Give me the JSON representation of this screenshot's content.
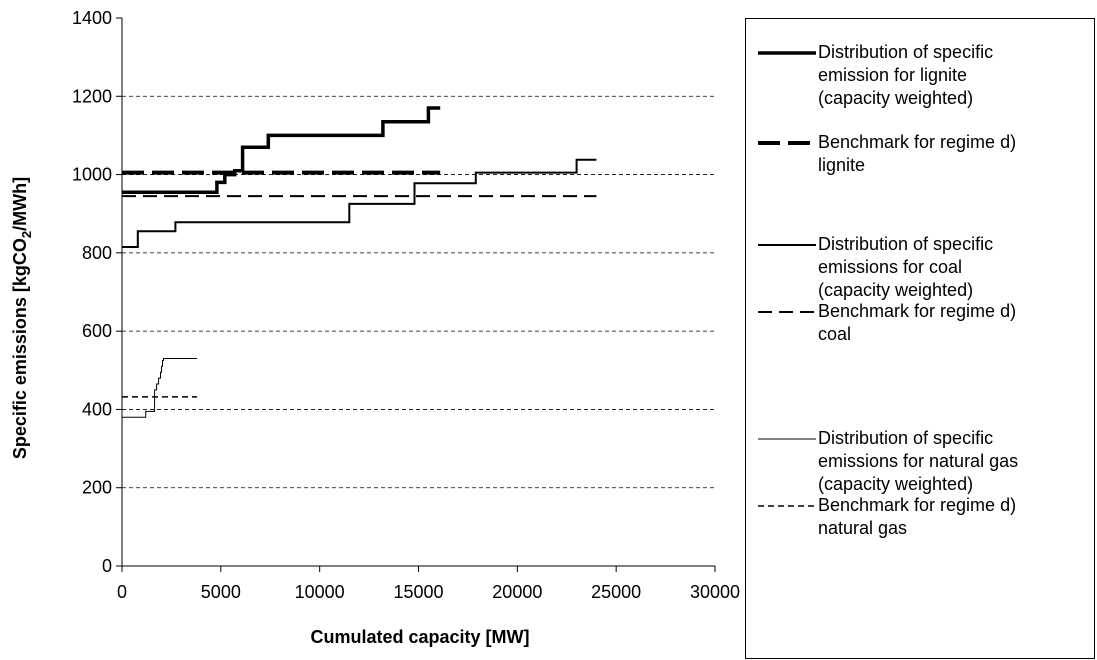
{
  "chart_data": {
    "type": "line",
    "xlabel": "Cumulated capacity [MW]",
    "ylabel_prefix": "Specific emissions [kgCO",
    "ylabel_sub": "2",
    "ylabel_suffix": "/MWh]",
    "xlim": [
      0,
      30000
    ],
    "ylim": [
      0,
      1400
    ],
    "xticks": [
      "0",
      "5000",
      "10000",
      "15000",
      "20000",
      "25000",
      "30000"
    ],
    "yticks": [
      "0",
      "200",
      "400",
      "600",
      "800",
      "1000",
      "1200",
      "1400"
    ],
    "grid": "horizontal dashed",
    "legend_position": "right",
    "series": [
      {
        "name": "Distribution of specific emission for lignite (capacity weighted)",
        "style": "step-thick-solid",
        "x": [
          0,
          4800,
          4800,
          5200,
          5200,
          5700,
          5700,
          6100,
          6100,
          7400,
          7400,
          13200,
          13200,
          15500,
          15500,
          16100
        ],
        "y": [
          955,
          955,
          980,
          980,
          1000,
          1000,
          1010,
          1010,
          1070,
          1070,
          1100,
          1100,
          1135,
          1135,
          1170,
          1170
        ]
      },
      {
        "name": "Benchmark for regime d) lignite",
        "style": "thick-dash",
        "x": [
          0,
          16100
        ],
        "y": [
          1005,
          1005
        ]
      },
      {
        "name": "Distribution of specific emissions for coal (capacity weighted)",
        "style": "step-medium-solid",
        "x": [
          0,
          800,
          800,
          2700,
          2700,
          11500,
          11500,
          14800,
          14800,
          17900,
          17900,
          23000,
          23000,
          24000
        ],
        "y": [
          815,
          815,
          855,
          855,
          878,
          878,
          925,
          925,
          978,
          978,
          1005,
          1005,
          1038,
          1038
        ]
      },
      {
        "name": "Benchmark for regime d) coal",
        "style": "medium-dash",
        "x": [
          0,
          24000
        ],
        "y": [
          945,
          945
        ]
      },
      {
        "name": "Distribution of specific emissions for natural gas (capacity weighted)",
        "style": "step-thin-solid",
        "x": [
          0,
          1200,
          1200,
          1650,
          1650,
          1750,
          1750,
          1850,
          1850,
          1950,
          1950,
          2000,
          2000,
          2050,
          2050,
          2100,
          2100,
          3800
        ],
        "y": [
          380,
          380,
          395,
          395,
          450,
          450,
          465,
          465,
          480,
          480,
          495,
          495,
          510,
          510,
          525,
          525,
          530,
          530
        ]
      },
      {
        "name": "Benchmark for regime d) natural gas",
        "style": "thin-dash",
        "x": [
          0,
          3800
        ],
        "y": [
          432,
          432
        ]
      }
    ]
  },
  "legend": [
    {
      "lines": [
        "Distribution of specific",
        "emission for lignite",
        "(capacity weighted)"
      ]
    },
    {
      "lines": [
        "Benchmark for regime d)",
        "lignite"
      ]
    },
    {
      "lines": [
        "Distribution of specific",
        "emissions for coal",
        "(capacity weighted)"
      ]
    },
    {
      "lines": [
        "Benchmark for regime d)",
        "coal"
      ]
    },
    {
      "lines": [
        "Distribution of specific",
        "emissions for natural gas",
        "(capacity weighted)"
      ]
    },
    {
      "lines": [
        "Benchmark for regime d)",
        "natural gas"
      ]
    }
  ]
}
